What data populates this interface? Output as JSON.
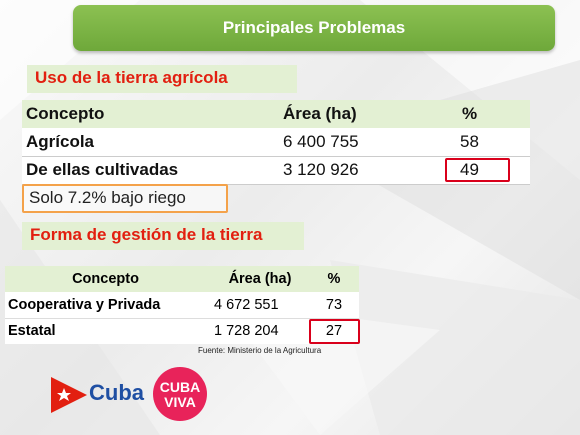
{
  "title": "Principales Problemas",
  "section1": {
    "label": "Uso de la tierra agrícola",
    "headers": [
      "Concepto",
      "Área (ha)",
      "%"
    ],
    "rows": [
      {
        "concepto": "Agrícola",
        "area": "6 400 755",
        "pct": "58"
      },
      {
        "concepto": "De ellas cultivadas",
        "area": "3 120 926",
        "pct": "49"
      }
    ],
    "note": "Solo 7.2% bajo riego"
  },
  "section2": {
    "label": "Forma de gestión de la tierra",
    "headers": [
      "Concepto",
      "Área (ha)",
      "%"
    ],
    "rows": [
      {
        "concepto": "Cooperativa y Privada",
        "area": "4 672 551",
        "pct": "73"
      },
      {
        "concepto": "Estatal",
        "area": "1 728 204",
        "pct": "27"
      }
    ],
    "source": "Fuente:  Ministerio de la Agricultura"
  },
  "logos": {
    "cuba_text": "Cuba",
    "cuba_viva_line1": "CUBA",
    "cuba_viva_line2": "VIVA"
  },
  "colors": {
    "title_green": "#7ab648",
    "section_bg": "#e3f0d3",
    "section_text": "#e21f10",
    "highlight_red": "#d9001b",
    "note_orange": "#f4a24a"
  }
}
